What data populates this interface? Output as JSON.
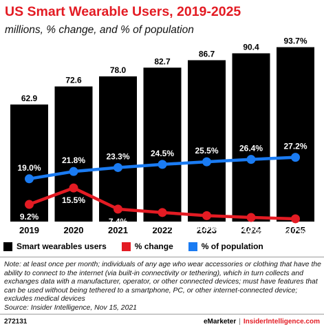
{
  "header": {
    "title": "US Smart Wearable Users, 2019-2025",
    "subtitle": "millions, % change, and % of population"
  },
  "chart_data": {
    "type": "bar",
    "categories": [
      "2019",
      "2020",
      "2021",
      "2022",
      "2023",
      "2024",
      "2025"
    ],
    "series": [
      {
        "name": "Smart wearables users",
        "type": "bar",
        "color": "#000000",
        "values": [
          62.9,
          72.6,
          78.0,
          82.7,
          86.7,
          90.4,
          93.7
        ],
        "labels": [
          "62.9",
          "72.6",
          "78.0",
          "82.7",
          "86.7",
          "90.4",
          "93.7%"
        ]
      },
      {
        "name": "% change",
        "type": "line",
        "color": "#e31b23",
        "values": [
          9.2,
          15.5,
          7.4,
          6.1,
          4.9,
          4.2,
          3.7
        ],
        "labels": [
          "9.2%",
          "15.5%",
          "7.4%",
          "6.1%",
          "4.9%",
          "4.2%",
          "3.7%"
        ]
      },
      {
        "name": "% of population",
        "type": "line",
        "color": "#1a7bf2",
        "values": [
          19.0,
          21.8,
          23.3,
          24.5,
          25.5,
          26.4,
          27.2
        ],
        "labels": [
          "19.0%",
          "21.8%",
          "23.3%",
          "24.5%",
          "25.5%",
          "26.4%",
          "27.2%"
        ]
      }
    ]
  },
  "legend": {
    "items": [
      {
        "label": "Smart wearables users",
        "color": "#000000"
      },
      {
        "label": "% change",
        "color": "#e31b23"
      },
      {
        "label": "% of population",
        "color": "#1a7bf2"
      }
    ]
  },
  "note": "Note: at least once per month; individuals of any age who wear accessories or clothing that have the ability to connect to the internet (via built-in connectivity or tethering), which in turn collects and exchanges data with a manufacturer, operator, or other connected devices; must have features that can be used without being tethered to a smartphone, PC, or other internet-connected device; excludes medical devices",
  "source": "Source: Insider Intelligence, Nov 15, 2021",
  "footer": {
    "id": "272131",
    "brand1": "eMarketer",
    "separator": "|",
    "brand2": "InsiderIntelligence.com"
  }
}
